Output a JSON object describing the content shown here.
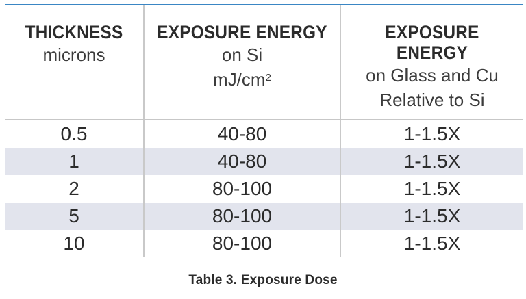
{
  "table": {
    "headers": [
      {
        "main": "THICKNESS",
        "sub": [
          "microns"
        ]
      },
      {
        "main": "EXPOSURE ENERGY",
        "sub": [
          "on Si"
        ],
        "unit": "mJ/cm",
        "unit_sup": "2"
      },
      {
        "main": "EXPOSURE ENERGY",
        "sub": [
          "on Glass and Cu",
          "Relative to Si"
        ]
      }
    ],
    "rows": [
      [
        "0.5",
        "40-80",
        "1-1.5X"
      ],
      [
        "1",
        "40-80",
        "1-1.5X"
      ],
      [
        "2",
        "80-100",
        "1-1.5X"
      ],
      [
        "5",
        "80-100",
        "1-1.5X"
      ],
      [
        "10",
        "80-100",
        "1-1.5X"
      ]
    ],
    "shaded_rows": [
      1,
      3
    ],
    "colors": {
      "top_rule": "#3a86c4",
      "row_shade": "#e2e4ed",
      "divider": "#c9c9c9"
    }
  },
  "caption": "Table 3. Exposure Dose"
}
